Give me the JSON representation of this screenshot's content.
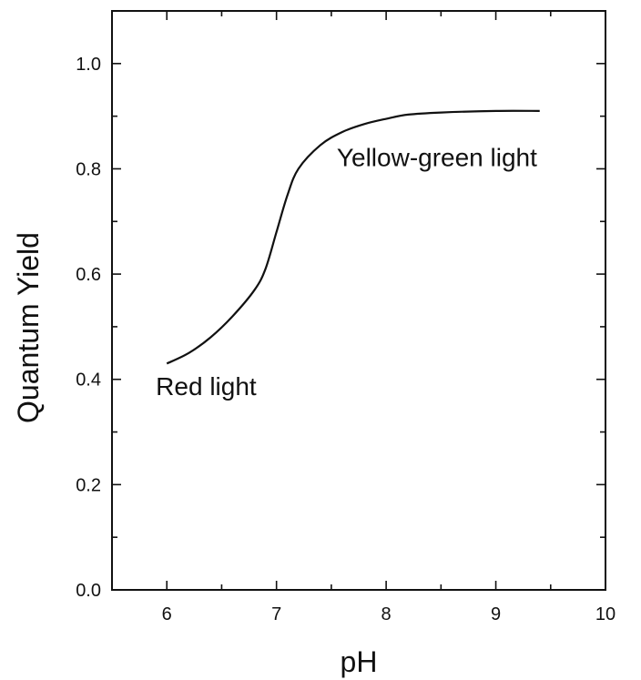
{
  "chart_data": {
    "type": "line",
    "title": "",
    "xlabel": "pH",
    "ylabel": "Quantum Yield",
    "xlim": [
      5.5,
      10
    ],
    "ylim": [
      0,
      1.1
    ],
    "x_ticks": [
      6,
      7,
      8,
      9,
      10
    ],
    "y_ticks": [
      0.0,
      0.2,
      0.4,
      0.6,
      0.8,
      1.0
    ],
    "x_tick_labels": [
      "6",
      "7",
      "8",
      "9",
      "10"
    ],
    "y_tick_labels": [
      "0.0",
      "0.2",
      "0.4",
      "0.6",
      "0.8",
      "1.0"
    ],
    "grid": false,
    "series": [
      {
        "x": [
          6.0,
          6.2,
          6.4,
          6.6,
          6.8,
          6.9,
          7.0,
          7.1,
          7.2,
          7.4,
          7.6,
          7.8,
          8.0,
          8.2,
          8.5,
          9.0,
          9.4
        ],
        "y": [
          0.43,
          0.45,
          0.48,
          0.52,
          0.57,
          0.61,
          0.68,
          0.75,
          0.8,
          0.845,
          0.87,
          0.885,
          0.895,
          0.903,
          0.907,
          0.91,
          0.91
        ]
      }
    ],
    "annotations": [
      {
        "text": "Yellow-green light",
        "x": 7.55,
        "y": 0.805
      },
      {
        "text": "Red light",
        "x": 5.9,
        "y": 0.37
      }
    ]
  }
}
